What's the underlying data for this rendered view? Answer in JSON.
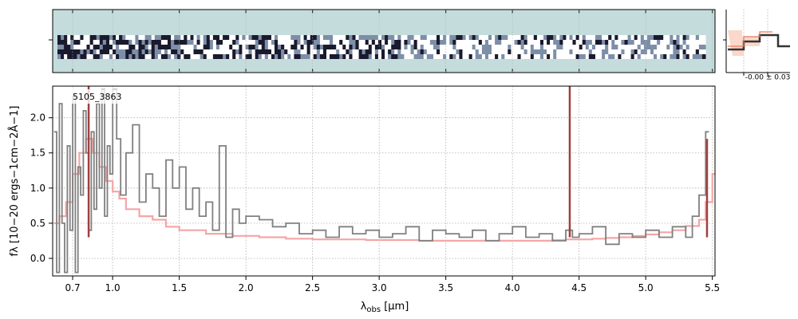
{
  "chart_data": {
    "type": "line",
    "object_id": "5105_3863",
    "xlabel": "λobs [μm]",
    "xlabel_main": "λ",
    "xlabel_sub": "obs",
    "xlabel_unit": " [μm]",
    "ylabel": "fλ [10−20 ergs−1cm−2Å−1]",
    "xlim": [
      0.55,
      5.52
    ],
    "ylim": [
      -0.25,
      2.45
    ],
    "x_ticks": [
      {
        "value": 0.7,
        "label": "0.7"
      },
      {
        "value": 1.0,
        "label": "1.0"
      },
      {
        "value": 1.5,
        "label": "1.5"
      },
      {
        "value": 2.0,
        "label": "2.0"
      },
      {
        "value": 2.5,
        "label": "2.5"
      },
      {
        "value": 3.0,
        "label": "3.0"
      },
      {
        "value": 3.5,
        "label": "3.5"
      },
      {
        "value": 4.0,
        "label": "4.0"
      },
      {
        "value": 4.5,
        "label": "4.5"
      },
      {
        "value": 5.0,
        "label": "5.0"
      },
      {
        "value": 5.5,
        "label": "5.5"
      }
    ],
    "y_ticks": [
      {
        "value": 0.0,
        "label": "0.0"
      },
      {
        "value": 0.5,
        "label": "0.5"
      },
      {
        "value": 1.0,
        "label": "1.0"
      },
      {
        "value": 1.5,
        "label": "1.5"
      },
      {
        "value": 2.0,
        "label": "2.0"
      }
    ],
    "grid": true,
    "series": [
      {
        "key": "flux",
        "color": "#808080",
        "x": [
          0.56,
          0.58,
          0.6,
          0.62,
          0.64,
          0.66,
          0.68,
          0.7,
          0.72,
          0.74,
          0.76,
          0.78,
          0.8,
          0.82,
          0.84,
          0.86,
          0.88,
          0.9,
          0.92,
          0.94,
          0.96,
          0.98,
          1.0,
          1.03,
          1.06,
          1.1,
          1.15,
          1.2,
          1.25,
          1.3,
          1.35,
          1.4,
          1.45,
          1.5,
          1.55,
          1.6,
          1.65,
          1.7,
          1.75,
          1.8,
          1.85,
          1.9,
          1.95,
          2.0,
          2.1,
          2.2,
          2.3,
          2.4,
          2.5,
          2.6,
          2.7,
          2.8,
          2.9,
          3.0,
          3.1,
          3.2,
          3.3,
          3.4,
          3.5,
          3.6,
          3.7,
          3.8,
          3.9,
          4.0,
          4.1,
          4.2,
          4.3,
          4.4,
          4.45,
          4.5,
          4.6,
          4.7,
          4.8,
          4.9,
          5.0,
          5.1,
          5.2,
          5.3,
          5.35,
          5.4,
          5.45
        ],
        "y": [
          1.8,
          -0.2,
          2.2,
          0.5,
          -0.2,
          1.6,
          0.4,
          2.3,
          -0.2,
          1.3,
          0.9,
          2.1,
          1.5,
          0.4,
          1.8,
          0.7,
          2.2,
          1.0,
          2.4,
          0.6,
          1.6,
          1.2,
          2.4,
          1.7,
          0.9,
          1.5,
          1.9,
          0.8,
          1.2,
          1.0,
          0.6,
          1.4,
          1.0,
          1.3,
          0.7,
          1.0,
          0.6,
          0.8,
          0.4,
          1.6,
          0.3,
          0.7,
          0.5,
          0.6,
          0.55,
          0.45,
          0.5,
          0.35,
          0.4,
          0.3,
          0.45,
          0.35,
          0.4,
          0.3,
          0.35,
          0.45,
          0.25,
          0.4,
          0.35,
          0.3,
          0.4,
          0.25,
          0.35,
          0.45,
          0.3,
          0.35,
          0.25,
          0.4,
          0.3,
          0.35,
          0.45,
          0.2,
          0.35,
          0.3,
          0.4,
          0.3,
          0.45,
          0.3,
          0.6,
          0.9,
          1.8
        ]
      },
      {
        "key": "model",
        "color": "#f4a6a6",
        "x": [
          0.56,
          0.6,
          0.65,
          0.7,
          0.75,
          0.8,
          0.85,
          0.9,
          0.95,
          1.0,
          1.05,
          1.1,
          1.2,
          1.3,
          1.4,
          1.5,
          1.7,
          1.9,
          2.1,
          2.3,
          2.5,
          2.7,
          2.9,
          3.1,
          3.3,
          3.5,
          3.7,
          3.9,
          4.1,
          4.3,
          4.4,
          4.5,
          4.6,
          4.7,
          4.8,
          4.9,
          5.0,
          5.1,
          5.2,
          5.3,
          5.4,
          5.45,
          5.5
        ],
        "y": [
          0.5,
          0.6,
          0.8,
          1.2,
          1.5,
          1.7,
          1.5,
          1.3,
          1.1,
          0.95,
          0.85,
          0.7,
          0.6,
          0.55,
          0.45,
          0.4,
          0.35,
          0.32,
          0.3,
          0.28,
          0.27,
          0.27,
          0.26,
          0.26,
          0.25,
          0.25,
          0.25,
          0.25,
          0.25,
          0.26,
          0.27,
          0.27,
          0.28,
          0.29,
          0.3,
          0.32,
          0.34,
          0.37,
          0.4,
          0.46,
          0.55,
          0.8,
          1.2
        ]
      }
    ],
    "emission_lines": [
      {
        "x": 0.82,
        "y_top": 2.45,
        "color": "#a04040"
      },
      {
        "x": 4.43,
        "y_top": 2.45,
        "color": "#a04040"
      },
      {
        "x": 5.46,
        "y_top": 1.7,
        "color": "#a04040"
      }
    ],
    "spectrum_2d": {
      "background_color": "#c5dcdc"
    },
    "side_panel": {
      "label": "-0.00 ± 0.03"
    }
  }
}
